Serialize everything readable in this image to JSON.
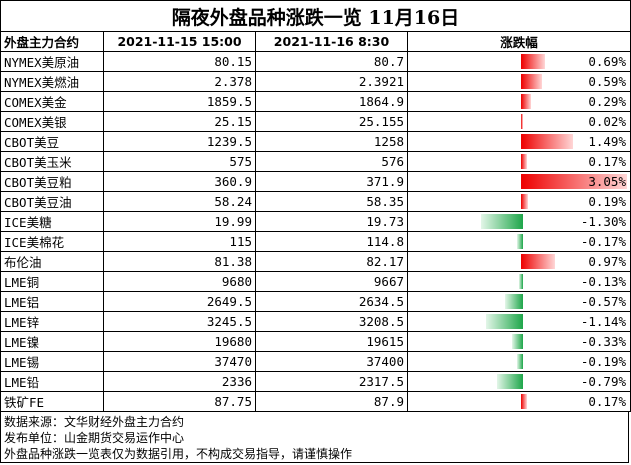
{
  "title": "隔夜外盘品种涨跌一览  11月16日",
  "headers": {
    "name": "外盘主力合约",
    "prev": "2021-11-15 15:00",
    "curr": "2021-11-16  8:30",
    "change": "涨跌幅"
  },
  "rows": [
    {
      "name": "NYMEX美原油",
      "prev": "80.15",
      "curr": "80.7",
      "pct": "0.69%",
      "value": 0.69
    },
    {
      "name": "NYMEX美燃油",
      "prev": "2.378",
      "curr": "2.3921",
      "pct": "0.59%",
      "value": 0.59
    },
    {
      "name": "COMEX美金",
      "prev": "1859.5",
      "curr": "1864.9",
      "pct": "0.29%",
      "value": 0.29
    },
    {
      "name": "COMEX美银",
      "prev": "25.15",
      "curr": "25.155",
      "pct": "0.02%",
      "value": 0.02
    },
    {
      "name": "CBOT美豆",
      "prev": "1239.5",
      "curr": "1258",
      "pct": "1.49%",
      "value": 1.49
    },
    {
      "name": "CBOT美玉米",
      "prev": "575",
      "curr": "576",
      "pct": "0.17%",
      "value": 0.17
    },
    {
      "name": "CBOT美豆粕",
      "prev": "360.9",
      "curr": "371.9",
      "pct": "3.05%",
      "value": 3.05
    },
    {
      "name": "CBOT美豆油",
      "prev": "58.24",
      "curr": "58.35",
      "pct": "0.19%",
      "value": 0.19
    },
    {
      "name": "ICE美糖",
      "prev": "19.99",
      "curr": "19.73",
      "pct": "-1.30%",
      "value": -1.3
    },
    {
      "name": "ICE美棉花",
      "prev": "115",
      "curr": "114.8",
      "pct": "-0.17%",
      "value": -0.17
    },
    {
      "name": "布伦油",
      "prev": "81.38",
      "curr": "82.17",
      "pct": "0.97%",
      "value": 0.97
    },
    {
      "name": "LME铜",
      "prev": "9680",
      "curr": "9667",
      "pct": "-0.13%",
      "value": -0.13
    },
    {
      "name": "LME铝",
      "prev": "2649.5",
      "curr": "2634.5",
      "pct": "-0.57%",
      "value": -0.57
    },
    {
      "name": "LME锌",
      "prev": "3245.5",
      "curr": "3208.5",
      "pct": "-1.14%",
      "value": -1.14
    },
    {
      "name": "LME镍",
      "prev": "19680",
      "curr": "19615",
      "pct": "-0.33%",
      "value": -0.33
    },
    {
      "name": "LME锡",
      "prev": "37470",
      "curr": "37400",
      "pct": "-0.19%",
      "value": -0.19
    },
    {
      "name": "LME铅",
      "prev": "2336",
      "curr": "2317.5",
      "pct": "-0.79%",
      "value": -0.79
    },
    {
      "name": "铁矿FE",
      "prev": "87.75",
      "curr": "87.9",
      "pct": "0.17%",
      "value": 0.17
    }
  ],
  "footer": {
    "source": "数据来源：文华财经外盘主力合约",
    "publisher": "发布单位：山金期货交易运作中心",
    "disclaimer": "外盘品种涨跌一览表仅为数据引用，不构成交易指导，请谨慎操作"
  },
  "colors": {
    "up": "#ee0000",
    "down": "#1ea64a"
  }
}
